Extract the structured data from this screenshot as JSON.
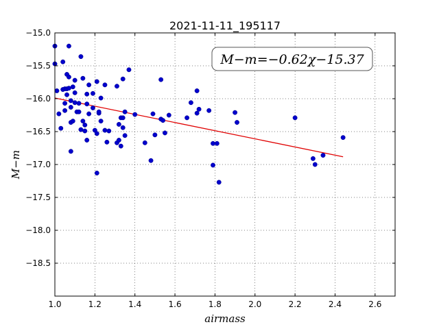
{
  "chart_data": {
    "type": "scatter",
    "title": "2021-11-11_195117",
    "xlabel": "airmass",
    "ylabel": "M−m",
    "xlim": [
      1.0,
      2.7
    ],
    "ylim": [
      -19.0,
      -15.0
    ],
    "y_inverted": true,
    "x_ticks": [
      1.0,
      1.2,
      1.4,
      1.6,
      1.8,
      2.0,
      2.2,
      2.4,
      2.6
    ],
    "x_tick_labels": [
      "1.0",
      "1.2",
      "1.4",
      "1.6",
      "1.8",
      "2.0",
      "2.2",
      "2.4",
      "2.6"
    ],
    "y_ticks": [
      -15.0,
      -15.5,
      -16.0,
      -16.5,
      -17.0,
      -17.5,
      -18.0,
      -18.5
    ],
    "y_tick_labels": [
      "−15.0",
      "−15.5",
      "−16.0",
      "−16.5",
      "−17.0",
      "−17.5",
      "−18.0",
      "−18.5"
    ],
    "grid": true,
    "annotation": "M−m=−0.62χ−15.37",
    "annotation_placement": "top-right",
    "fit": {
      "slope": -0.62,
      "intercept": -15.37,
      "x_range": [
        1.0,
        2.44
      ],
      "color": "#e00000"
    },
    "series": [
      {
        "color": "#0000cc",
        "points": [
          [
            1.0,
            -15.2
          ],
          [
            1.0,
            -15.47
          ],
          [
            1.01,
            -15.88
          ],
          [
            1.02,
            -16.23
          ],
          [
            1.03,
            -16.45
          ],
          [
            1.04,
            -15.44
          ],
          [
            1.04,
            -15.86
          ],
          [
            1.05,
            -16.07
          ],
          [
            1.05,
            -16.18
          ],
          [
            1.05,
            -15.85
          ],
          [
            1.06,
            -15.63
          ],
          [
            1.06,
            -15.85
          ],
          [
            1.06,
            -15.94
          ],
          [
            1.07,
            -15.67
          ],
          [
            1.07,
            -15.84
          ],
          [
            1.07,
            -15.2
          ],
          [
            1.08,
            -16.13
          ],
          [
            1.08,
            -16.03
          ],
          [
            1.08,
            -16.36
          ],
          [
            1.08,
            -16.8
          ],
          [
            1.09,
            -15.82
          ],
          [
            1.09,
            -16.34
          ],
          [
            1.1,
            -15.72
          ],
          [
            1.1,
            -16.06
          ],
          [
            1.1,
            -15.91
          ],
          [
            1.11,
            -16.2
          ],
          [
            1.12,
            -16.07
          ],
          [
            1.12,
            -16.2
          ],
          [
            1.13,
            -15.36
          ],
          [
            1.13,
            -16.47
          ],
          [
            1.14,
            -15.69
          ],
          [
            1.14,
            -16.34
          ],
          [
            1.15,
            -16.4
          ],
          [
            1.15,
            -16.49
          ],
          [
            1.16,
            -16.08
          ],
          [
            1.16,
            -16.63
          ],
          [
            1.16,
            -15.93
          ],
          [
            1.17,
            -16.23
          ],
          [
            1.17,
            -15.79
          ],
          [
            1.19,
            -15.92
          ],
          [
            1.19,
            -16.14
          ],
          [
            1.2,
            -16.48
          ],
          [
            1.21,
            -15.74
          ],
          [
            1.21,
            -16.53
          ],
          [
            1.21,
            -17.13
          ],
          [
            1.22,
            -16.22
          ],
          [
            1.22,
            -16.2
          ],
          [
            1.23,
            -15.99
          ],
          [
            1.23,
            -16.34
          ],
          [
            1.25,
            -15.79
          ],
          [
            1.25,
            -16.48
          ],
          [
            1.26,
            -16.66
          ],
          [
            1.27,
            -16.49
          ],
          [
            1.31,
            -16.67
          ],
          [
            1.31,
            -15.81
          ],
          [
            1.32,
            -16.39
          ],
          [
            1.32,
            -16.63
          ],
          [
            1.33,
            -16.29
          ],
          [
            1.33,
            -16.72
          ],
          [
            1.34,
            -15.7
          ],
          [
            1.34,
            -16.44
          ],
          [
            1.34,
            -16.29
          ],
          [
            1.35,
            -16.2
          ],
          [
            1.35,
            -16.56
          ],
          [
            1.37,
            -15.56
          ],
          [
            1.4,
            -16.24
          ],
          [
            1.45,
            -16.67
          ],
          [
            1.48,
            -16.94
          ],
          [
            1.49,
            -16.23
          ],
          [
            1.5,
            -16.55
          ],
          [
            1.53,
            -15.71
          ],
          [
            1.53,
            -16.31
          ],
          [
            1.54,
            -16.33
          ],
          [
            1.55,
            -16.52
          ],
          [
            1.57,
            -16.25
          ],
          [
            1.66,
            -16.29
          ],
          [
            1.68,
            -16.06
          ],
          [
            1.71,
            -16.22
          ],
          [
            1.71,
            -15.88
          ],
          [
            1.72,
            -16.16
          ],
          [
            1.77,
            -16.18
          ],
          [
            1.79,
            -17.01
          ],
          [
            1.79,
            -16.68
          ],
          [
            1.81,
            -16.68
          ],
          [
            1.82,
            -17.27
          ],
          [
            1.9,
            -16.21
          ],
          [
            1.91,
            -16.36
          ],
          [
            2.2,
            -16.29
          ],
          [
            2.29,
            -16.91
          ],
          [
            2.3,
            -17.0
          ],
          [
            2.34,
            -16.86
          ],
          [
            2.44,
            -16.59
          ]
        ]
      }
    ]
  }
}
